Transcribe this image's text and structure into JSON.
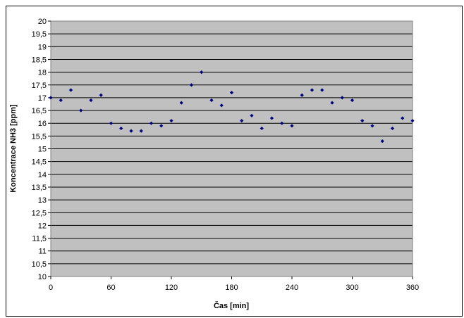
{
  "chart_data": {
    "type": "scatter",
    "title": "",
    "xlabel": "Čas [min]",
    "ylabel": "Koncentrace NH3 [ppm]",
    "xlim": [
      0,
      360
    ],
    "ylim": [
      10,
      20
    ],
    "x_ticks": [
      0,
      60,
      120,
      180,
      240,
      300,
      360
    ],
    "x_tick_labels": [
      "0",
      "60",
      "120",
      "180",
      "240",
      "300",
      "360"
    ],
    "y_ticks": [
      10,
      10.5,
      11,
      11.5,
      12,
      12.5,
      13,
      13.5,
      14,
      14.5,
      15,
      15.5,
      16,
      16.5,
      17,
      17.5,
      18,
      18.5,
      19,
      19.5,
      20
    ],
    "y_tick_labels": [
      "10",
      "10,5",
      "11",
      "11,5",
      "12",
      "12,5",
      "13",
      "13,5",
      "14",
      "14,5",
      "15",
      "15,5",
      "16",
      "16,5",
      "17",
      "17,5",
      "18",
      "18,5",
      "19",
      "19,5",
      "20"
    ],
    "grid": true,
    "legend": "none",
    "colors": {
      "plot_background": "#c0c0c0",
      "marker": "#000080",
      "gridline": "#000000"
    },
    "series": [
      {
        "x": [
          0,
          10,
          20,
          30,
          40,
          50,
          60,
          70,
          80,
          90,
          100,
          110,
          120,
          130,
          140,
          150,
          160,
          170,
          180,
          190,
          200,
          210,
          220,
          230,
          240,
          250,
          260,
          270,
          280,
          290,
          300,
          310,
          320,
          330,
          340,
          350,
          360
        ],
        "y": [
          17.0,
          16.9,
          17.3,
          16.5,
          16.9,
          17.1,
          16.0,
          15.8,
          15.7,
          15.7,
          16.0,
          15.9,
          16.1,
          16.8,
          17.5,
          18.0,
          16.9,
          16.7,
          17.2,
          16.1,
          16.3,
          15.8,
          16.2,
          16.0,
          15.9,
          17.1,
          17.3,
          17.3,
          16.8,
          17.0,
          16.9,
          16.1,
          15.9,
          15.3,
          15.8,
          16.2,
          16.1
        ]
      }
    ]
  }
}
